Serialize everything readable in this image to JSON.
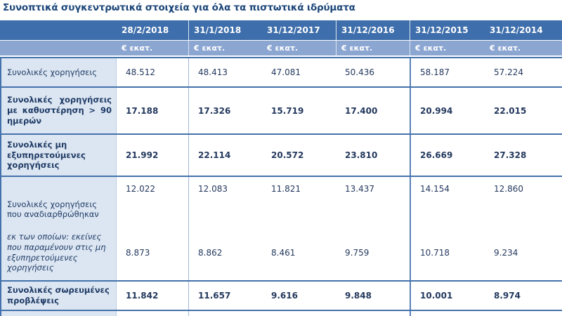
{
  "title": "Συνοπτικά συγκεντρωτικά στοιχεία για όλα τα πιστωτικά ιδρύματα",
  "table": {
    "unit_label": "€ εκατ.",
    "columns": [
      "28/2/2018",
      "31/1/2018",
      "31/12/2017",
      "31/12/2016",
      "31/12/2015",
      "31/12/2014"
    ],
    "rows": [
      {
        "label": "Συνολικές χορηγήσεις",
        "style": "regular",
        "values": [
          "48.512",
          "48.413",
          "47.081",
          "50.436",
          "58.187",
          "57.224"
        ]
      },
      {
        "label": "Συνολικές χορηγήσεις με καθυστέρηση > 90 ημερών",
        "style": "bold",
        "values": [
          "17.188",
          "17.326",
          "15.719",
          "17.400",
          "20.994",
          "22.015"
        ]
      },
      {
        "label": "Συνολικές μη εξυπηρετούμενες χορηγήσεις",
        "style": "bold",
        "values": [
          "21.992",
          "22.114",
          "20.572",
          "23.810",
          "26.669",
          "27.328"
        ]
      },
      {
        "label": "Συνολικές χορηγήσεις που αναδιαρθρώθηκαν",
        "style": "regular",
        "values": [
          "12.022",
          "12.083",
          "11.821",
          "13.437",
          "14.154",
          "12.860"
        ]
      },
      {
        "label": "εκ των οποίων: εκείνες που παραμένουν στις μη εξυπηρετούμενες χορηγήσεις",
        "style": "italic",
        "values": [
          "8.873",
          "8.862",
          "8.461",
          "9.759",
          "10.718",
          "9.234"
        ]
      },
      {
        "label": "Συνολικές σωρευμένες προβλέψεις",
        "style": "bold",
        "values": [
          "11.842",
          "11.657",
          "9.616",
          "9.848",
          "10.001",
          "8.974"
        ]
      }
    ]
  },
  "colors": {
    "header_dark": "#3E6EAB",
    "header_light": "#8CA6D2",
    "label_background": "#DCE6F2",
    "border_strong": "#4472AC",
    "border_light": "#9FB6D9",
    "text": "#1F3B66",
    "title_text": "#1B4679"
  }
}
